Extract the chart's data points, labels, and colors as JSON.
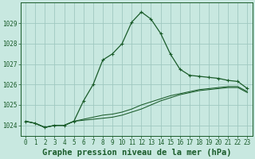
{
  "title": "Graphe pression niveau de la mer (hPa)",
  "bg_color": "#c8e8e0",
  "plot_bg_color": "#c8e8e0",
  "grid_color": "#a0c8c0",
  "line_color": "#1a5c2a",
  "hours": [
    0,
    1,
    2,
    3,
    4,
    5,
    6,
    7,
    8,
    9,
    10,
    11,
    12,
    13,
    14,
    15,
    16,
    17,
    18,
    19,
    20,
    21,
    22,
    23
  ],
  "series1": [
    1024.2,
    1024.1,
    1023.9,
    1024.0,
    1024.0,
    1024.2,
    1025.2,
    1026.0,
    1027.2,
    1027.5,
    1028.0,
    1029.05,
    1029.55,
    1029.2,
    1028.5,
    1027.5,
    1026.75,
    1026.45,
    1026.4,
    1026.35,
    1026.3,
    1026.2,
    1026.15,
    1025.8
  ],
  "series2": [
    1024.2,
    1024.1,
    1023.9,
    1024.0,
    1024.0,
    1024.2,
    1024.25,
    1024.3,
    1024.35,
    1024.4,
    1024.5,
    1024.65,
    1024.8,
    1025.0,
    1025.2,
    1025.35,
    1025.5,
    1025.6,
    1025.7,
    1025.75,
    1025.8,
    1025.85,
    1025.85,
    1025.6
  ],
  "series3": [
    1024.2,
    1024.1,
    1023.9,
    1024.0,
    1024.0,
    1024.2,
    1024.3,
    1024.4,
    1024.5,
    1024.55,
    1024.65,
    1024.8,
    1025.0,
    1025.15,
    1025.3,
    1025.45,
    1025.55,
    1025.65,
    1025.75,
    1025.8,
    1025.85,
    1025.9,
    1025.9,
    1025.65
  ],
  "ylim": [
    1023.5,
    1030.0
  ],
  "yticks": [
    1024,
    1025,
    1026,
    1027,
    1028,
    1029
  ],
  "xticks": [
    0,
    1,
    2,
    3,
    4,
    5,
    6,
    7,
    8,
    9,
    10,
    11,
    12,
    13,
    14,
    15,
    16,
    17,
    18,
    19,
    20,
    21,
    22,
    23
  ],
  "xtick_labels": [
    "0",
    "1",
    "2",
    "3",
    "4",
    "5",
    "6",
    "7",
    "8",
    "9",
    "10",
    "11",
    "12",
    "13",
    "14",
    "15",
    "16",
    "17",
    "18",
    "19",
    "20",
    "21",
    "22",
    "23"
  ],
  "title_fontsize": 7.5,
  "tick_fontsize": 5.5
}
